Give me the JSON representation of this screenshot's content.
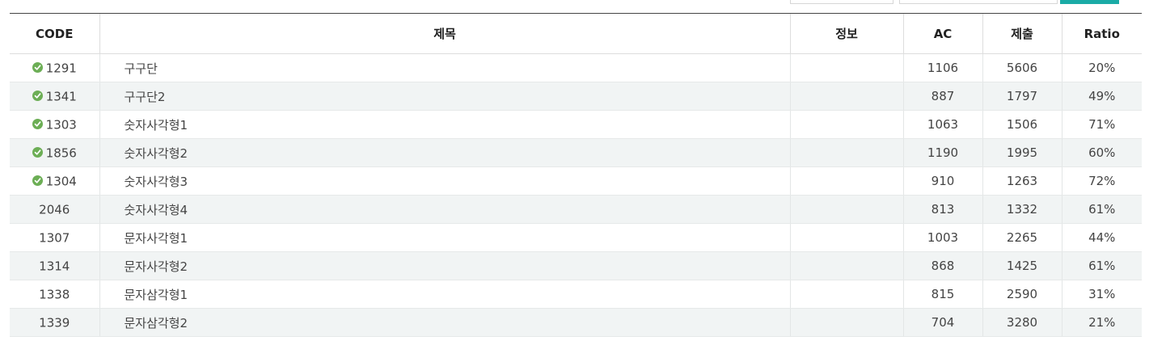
{
  "table": {
    "headers": {
      "code": "CODE",
      "title": "제목",
      "info": "정보",
      "ac": "AC",
      "submit": "제출",
      "ratio": "Ratio"
    },
    "rows": [
      {
        "code": "1291",
        "title": "구구단",
        "info": "",
        "ac": "1106",
        "submit": "5606",
        "ratio": "20%",
        "solved": true
      },
      {
        "code": "1341",
        "title": "구구단2",
        "info": "",
        "ac": "887",
        "submit": "1797",
        "ratio": "49%",
        "solved": true
      },
      {
        "code": "1303",
        "title": "숫자사각형1",
        "info": "",
        "ac": "1063",
        "submit": "1506",
        "ratio": "71%",
        "solved": true
      },
      {
        "code": "1856",
        "title": "숫자사각형2",
        "info": "",
        "ac": "1190",
        "submit": "1995",
        "ratio": "60%",
        "solved": true
      },
      {
        "code": "1304",
        "title": "숫자사각형3",
        "info": "",
        "ac": "910",
        "submit": "1263",
        "ratio": "72%",
        "solved": true
      },
      {
        "code": "2046",
        "title": "숫자사각형4",
        "info": "",
        "ac": "813",
        "submit": "1332",
        "ratio": "61%",
        "solved": false
      },
      {
        "code": "1307",
        "title": "문자사각형1",
        "info": "",
        "ac": "1003",
        "submit": "2265",
        "ratio": "44%",
        "solved": false
      },
      {
        "code": "1314",
        "title": "문자사각형2",
        "info": "",
        "ac": "868",
        "submit": "1425",
        "ratio": "61%",
        "solved": false
      },
      {
        "code": "1338",
        "title": "문자삼각형1",
        "info": "",
        "ac": "815",
        "submit": "2590",
        "ratio": "31%",
        "solved": false
      },
      {
        "code": "1339",
        "title": "문자삼각형2",
        "info": "",
        "ac": "704",
        "submit": "3280",
        "ratio": "21%",
        "solved": false
      }
    ]
  },
  "colors": {
    "accent": "#1aaba6",
    "solved_check": "#6cae55",
    "stripe": "#f1f4f4"
  }
}
